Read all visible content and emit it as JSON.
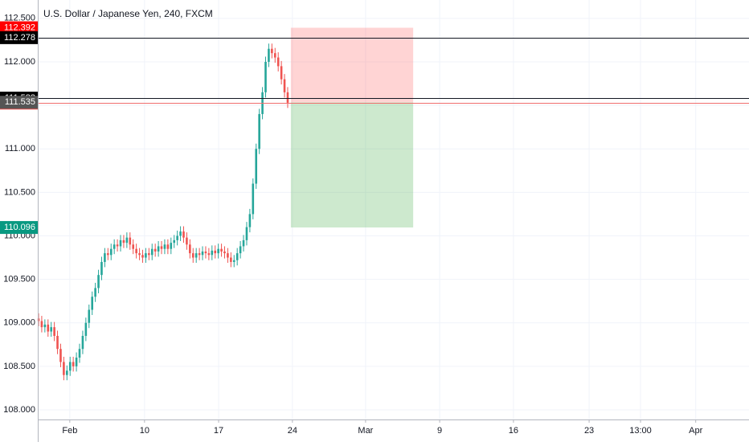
{
  "chart_data": {
    "type": "candlestick",
    "title": "U.S. Dollar / Japanese Yen, 240, FXCM",
    "up_color": "#26a69a",
    "down_color": "#ef5350",
    "grid": true,
    "xlim": [
      0,
      225.3
    ],
    "ylim": [
      107.889,
      112.711
    ],
    "xticks": [
      {
        "value": 9.9,
        "label": "Feb"
      },
      {
        "value": 33.6,
        "label": "10"
      },
      {
        "value": 57.1,
        "label": "17"
      },
      {
        "value": 80.5,
        "label": "24"
      },
      {
        "value": 103.7,
        "label": "Mar"
      },
      {
        "value": 127.2,
        "label": "9"
      },
      {
        "value": 150.6,
        "label": "16"
      },
      {
        "value": 174.6,
        "label": "23"
      },
      {
        "value": 190.9,
        "label": "13:00"
      },
      {
        "value": 208.4,
        "label": "Apr"
      }
    ],
    "yticks": [
      {
        "value": 108,
        "label": "108.000"
      },
      {
        "value": 108.5,
        "label": "108.500"
      },
      {
        "value": 109,
        "label": "109.000"
      },
      {
        "value": 109.5,
        "label": "109.500"
      },
      {
        "value": 110,
        "label": "110.000"
      },
      {
        "value": 110.5,
        "label": "110.500"
      },
      {
        "value": 111,
        "label": "111.000"
      },
      {
        "value": 111.5,
        "label": "111.500"
      },
      {
        "value": 112,
        "label": "112.000"
      },
      {
        "value": 112.5,
        "label": "112.500"
      }
    ],
    "x": [
      0,
      1,
      2,
      3,
      4,
      5,
      6,
      7,
      8,
      9,
      10,
      11,
      12,
      13,
      14,
      15,
      16,
      17,
      18,
      19,
      20,
      21,
      22,
      23,
      24,
      25,
      26,
      27,
      28,
      29,
      30,
      31,
      32,
      33,
      34,
      35,
      36,
      37,
      38,
      39,
      40,
      41,
      42,
      43,
      44,
      45,
      46,
      47,
      48,
      49,
      50,
      51,
      52,
      53,
      54,
      55,
      56,
      57,
      58,
      59,
      60,
      61,
      62,
      63,
      64,
      65,
      66,
      67,
      68,
      69,
      70,
      71,
      72,
      73,
      74,
      75,
      76,
      77,
      78,
      79
    ],
    "open": [
      109.05,
      109.02,
      108.95,
      108.98,
      108.9,
      108.95,
      108.85,
      108.7,
      108.55,
      108.4,
      108.45,
      108.55,
      108.5,
      108.6,
      108.7,
      108.85,
      109.0,
      109.15,
      109.3,
      109.4,
      109.55,
      109.7,
      109.8,
      109.78,
      109.85,
      109.9,
      109.88,
      109.95,
      109.92,
      109.98,
      109.9,
      109.85,
      109.8,
      109.78,
      109.75,
      109.8,
      109.78,
      109.85,
      109.82,
      109.88,
      109.85,
      109.9,
      109.85,
      109.92,
      109.95,
      110.0,
      110.05,
      109.98,
      109.9,
      109.8,
      109.75,
      109.8,
      109.78,
      109.82,
      109.8,
      109.78,
      109.83,
      109.8,
      109.85,
      109.82,
      109.8,
      109.75,
      109.7,
      109.72,
      109.8,
      109.88,
      109.95,
      110.1,
      110.25,
      110.6,
      111.0,
      111.4,
      111.65,
      112.0,
      112.15,
      112.1,
      112.05,
      111.95,
      111.8,
      111.65
    ],
    "high": [
      109.11,
      109.08,
      109.04,
      109.04,
      109.01,
      109.01,
      108.91,
      108.76,
      108.61,
      108.51,
      108.61,
      108.61,
      108.66,
      108.76,
      108.91,
      109.06,
      109.21,
      109.36,
      109.46,
      109.61,
      109.76,
      109.86,
      109.86,
      109.91,
      109.96,
      109.96,
      110.01,
      110.01,
      110.04,
      110.04,
      109.96,
      109.91,
      109.86,
      109.84,
      109.86,
      109.86,
      109.91,
      109.91,
      109.94,
      109.94,
      109.96,
      109.96,
      109.98,
      110.01,
      110.06,
      110.11,
      110.11,
      110.04,
      109.96,
      109.86,
      109.86,
      109.86,
      109.88,
      109.88,
      109.86,
      109.89,
      109.89,
      109.91,
      109.91,
      109.88,
      109.86,
      109.81,
      109.78,
      109.86,
      109.94,
      110.01,
      110.16,
      110.31,
      110.66,
      111.06,
      111.46,
      111.71,
      112.06,
      112.21,
      112.21,
      112.16,
      112.11,
      112.01,
      111.86,
      111.71
    ],
    "low": [
      108.96,
      108.89,
      108.89,
      108.84,
      108.84,
      108.79,
      108.64,
      108.49,
      108.34,
      108.34,
      108.39,
      108.44,
      108.44,
      108.54,
      108.64,
      108.79,
      108.94,
      109.09,
      109.24,
      109.34,
      109.49,
      109.64,
      109.72,
      109.72,
      109.79,
      109.82,
      109.82,
      109.86,
      109.86,
      109.84,
      109.79,
      109.74,
      109.72,
      109.69,
      109.69,
      109.72,
      109.72,
      109.76,
      109.76,
      109.79,
      109.79,
      109.79,
      109.79,
      109.86,
      109.89,
      109.94,
      109.92,
      109.84,
      109.74,
      109.69,
      109.69,
      109.72,
      109.72,
      109.74,
      109.72,
      109.72,
      109.74,
      109.74,
      109.76,
      109.74,
      109.69,
      109.64,
      109.64,
      109.66,
      109.74,
      109.82,
      109.89,
      110.04,
      110.19,
      110.54,
      110.94,
      111.34,
      111.59,
      111.94,
      112.04,
      111.99,
      111.89,
      111.74,
      111.59,
      111.47
    ],
    "close": [
      109.02,
      108.95,
      108.98,
      108.9,
      108.95,
      108.85,
      108.7,
      108.55,
      108.4,
      108.45,
      108.55,
      108.5,
      108.6,
      108.7,
      108.85,
      109.0,
      109.15,
      109.3,
      109.4,
      109.55,
      109.7,
      109.8,
      109.78,
      109.85,
      109.9,
      109.88,
      109.95,
      109.92,
      109.98,
      109.9,
      109.85,
      109.8,
      109.78,
      109.75,
      109.8,
      109.78,
      109.85,
      109.82,
      109.88,
      109.85,
      109.9,
      109.85,
      109.92,
      109.95,
      110.0,
      110.05,
      109.98,
      109.9,
      109.8,
      109.75,
      109.8,
      109.78,
      109.82,
      109.8,
      109.78,
      109.83,
      109.8,
      109.85,
      109.82,
      109.8,
      109.75,
      109.7,
      109.72,
      109.8,
      109.88,
      109.95,
      110.1,
      110.25,
      110.6,
      111.0,
      111.4,
      111.65,
      112.0,
      112.15,
      112.1,
      112.05,
      111.95,
      111.8,
      111.65,
      111.53
    ],
    "price_lines": [
      {
        "value": 112.278,
        "color": "#131722"
      },
      {
        "value": 111.583,
        "color": "#131722"
      },
      {
        "value": 111.526,
        "color": "#f06e6e"
      }
    ],
    "position": {
      "x_start": 80.0,
      "x_end": 118.8,
      "stop": 112.392,
      "entry": 111.535,
      "target": 110.096,
      "stop_color": "#ff0000",
      "entry_color": "#555555",
      "target_color": "#089981"
    }
  }
}
